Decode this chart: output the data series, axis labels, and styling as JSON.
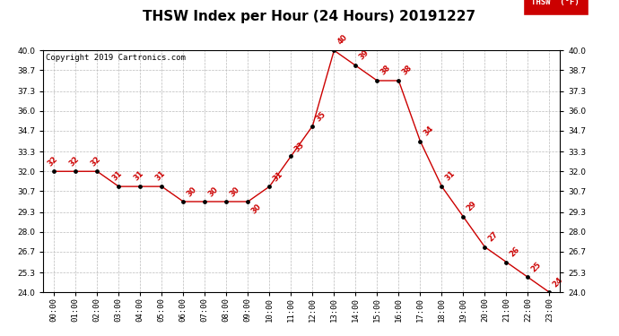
{
  "title": "THSW Index per Hour (24 Hours) 20191227",
  "copyright": "Copyright 2019 Cartronics.com",
  "legend_label": "THSW  (°F)",
  "hour_labels": [
    "00:00",
    "01:00",
    "02:00",
    "03:00",
    "04:00",
    "05:00",
    "06:00",
    "07:00",
    "08:00",
    "09:00",
    "10:00",
    "11:00",
    "12:00",
    "13:00",
    "14:00",
    "15:00",
    "16:00",
    "17:00",
    "18:00",
    "19:00",
    "20:00",
    "21:00",
    "22:00",
    "23:00"
  ],
  "x_values": [
    0,
    1,
    2,
    3,
    4,
    5,
    6,
    7,
    8,
    9,
    10,
    11,
    12,
    13,
    14,
    15,
    16,
    17,
    18,
    19,
    20,
    21,
    22,
    23
  ],
  "y_values": [
    32,
    32,
    32,
    31,
    31,
    31,
    30,
    30,
    30,
    30,
    31,
    33,
    35,
    40,
    39,
    38,
    38,
    34,
    31,
    29,
    27,
    26,
    25,
    24
  ],
  "line_color": "#cc0000",
  "marker_color": "#000000",
  "label_color": "#cc0000",
  "background_color": "#ffffff",
  "grid_color": "#bbbbbb",
  "ylim_min": 24.0,
  "ylim_max": 40.0,
  "yticks": [
    24.0,
    25.3,
    26.7,
    28.0,
    29.3,
    30.7,
    32.0,
    33.3,
    34.7,
    36.0,
    37.3,
    38.7,
    40.0
  ],
  "title_fontsize": 11,
  "copyright_fontsize": 6.5,
  "label_fontsize": 6,
  "tick_fontsize": 6.5,
  "legend_bg": "#cc0000",
  "legend_text_color": "#ffffff"
}
